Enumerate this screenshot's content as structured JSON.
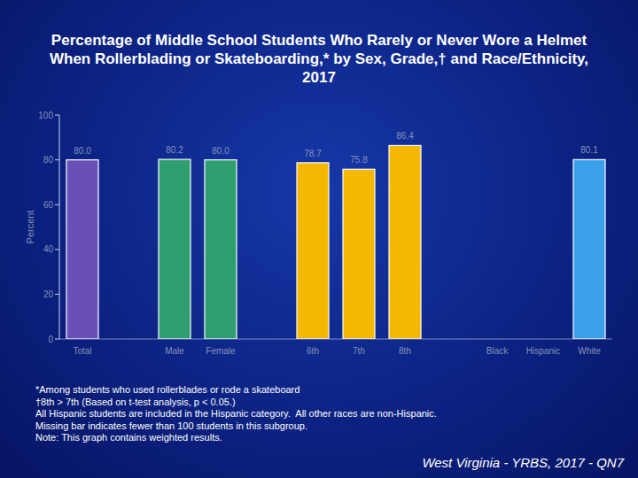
{
  "chart_data": {
    "type": "bar",
    "title": "Percentage of Middle School Students Who Rarely or Never Wore a Helmet When Rollerblading or Skateboarding,* by Sex, Grade,† and Race/Ethnicity, 2017",
    "y_label": "Percent",
    "categories": [
      "Total",
      null,
      "Male",
      "Female",
      null,
      "6th",
      "7th",
      "8th",
      null,
      "Black",
      "Hispanic",
      "White"
    ],
    "values": [
      80.0,
      null,
      80.2,
      80.0,
      null,
      78.7,
      75.8,
      86.4,
      null,
      null,
      null,
      80.1
    ],
    "value_labels": [
      "80.0",
      null,
      "80.2",
      "80.0",
      null,
      "78.7",
      "75.8",
      "86.4",
      null,
      null,
      null,
      "80.1"
    ],
    "colors": [
      "#6b4fb8",
      null,
      "#2f9e6f",
      "#2f9e6f",
      null,
      "#f5b800",
      "#f5b800",
      "#f5b800",
      null,
      "#3aa0ea",
      "#3aa0ea",
      "#3aa0ea"
    ],
    "ylim": [
      0,
      100
    ],
    "yticks": [
      0,
      20,
      40,
      60,
      80,
      100
    ],
    "grid": false,
    "data_labels": true,
    "notes": [
      "*Among students who used rollerblades or rode a skateboard",
      "†8th > 7th (Based on t-test analysis, p < 0.05.)",
      "All Hispanic students are included in the Hispanic category.  All other races are non-Hispanic.",
      "Missing bar indicates fewer than 100 students in this subgroup.",
      "Note: This graph contains weighted results."
    ],
    "source": "West Virginia - YRBS, 2017 - QN7"
  }
}
